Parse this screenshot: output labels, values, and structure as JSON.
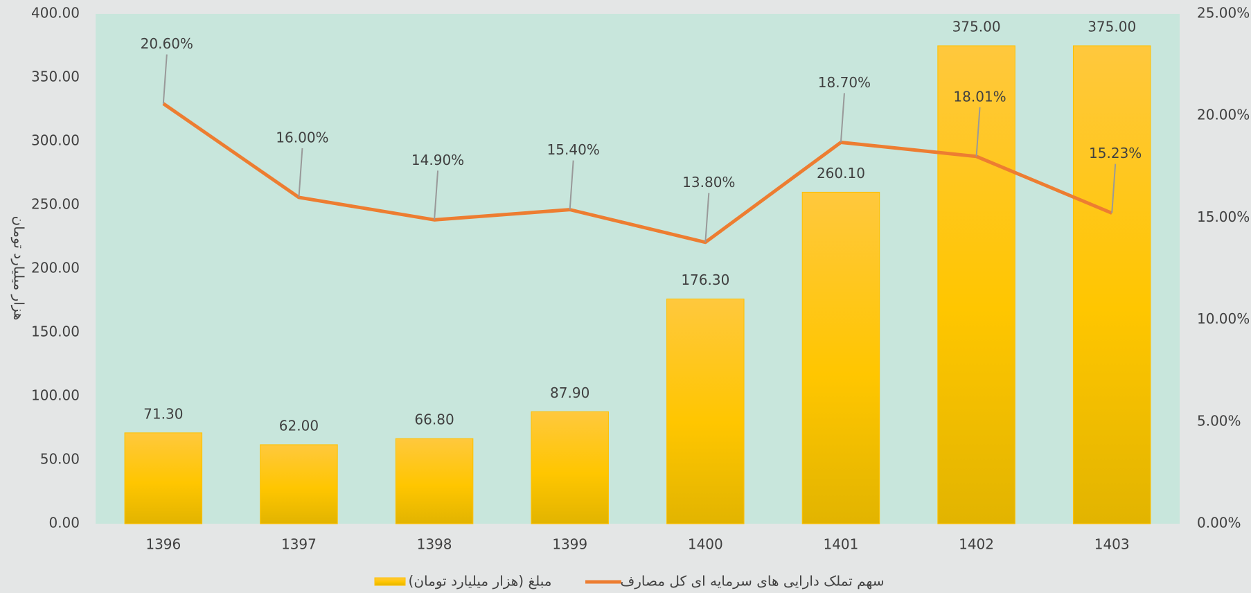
{
  "chart_data": {
    "type": "bar",
    "y_label": "هزار میلیارد تومان",
    "categories": [
      "1396",
      "1397",
      "1398",
      "1399",
      "1400",
      "1401",
      "1402",
      "1403"
    ],
    "series": [
      {
        "name": "مبلغ (هزار میلیارد تومان)",
        "type": "bar",
        "color": "#ffc000",
        "values": [
          71.3,
          62,
          66.8,
          87.9,
          176.3,
          260.1,
          375,
          375
        ],
        "value_labels": [
          "71.30",
          "62.00",
          "66.80",
          "87.90",
          "176.30",
          "260.10",
          "375.00",
          "375.00"
        ]
      },
      {
        "name": "سهم تملک دارایی های سرمایه ای کل مصارف",
        "type": "line",
        "axis": "y2",
        "color": "#ed7d31",
        "values": [
          20.6,
          16,
          14.9,
          15.4,
          13.8,
          18.7,
          18.01,
          15.23
        ],
        "value_labels": [
          "20.60%",
          "16.00%",
          "14.90%",
          "15.40%",
          "13.80%",
          "18.70%",
          "18.01%",
          "15.23%"
        ]
      }
    ],
    "ylim": [
      0,
      400
    ],
    "yticks": [
      {
        "value": 0,
        "label": "0.00"
      },
      {
        "value": 50,
        "label": "50.00"
      },
      {
        "value": 100,
        "label": "100.00"
      },
      {
        "value": 150,
        "label": "150.00"
      },
      {
        "value": 200,
        "label": "200.00"
      },
      {
        "value": 250,
        "label": "250.00"
      },
      {
        "value": 300,
        "label": "300.00"
      },
      {
        "value": 350,
        "label": "350.00"
      },
      {
        "value": 400,
        "label": "400.00"
      }
    ],
    "y2lim": [
      0,
      25
    ],
    "y2ticks": [
      {
        "value": 0,
        "label": "0.00%"
      },
      {
        "value": 5,
        "label": "5.00%"
      },
      {
        "value": 10,
        "label": "10.00%"
      },
      {
        "value": 15,
        "label": "15.00%"
      },
      {
        "value": 20,
        "label": "20.00%"
      },
      {
        "value": 25,
        "label": "25.00%"
      }
    ],
    "grid": false,
    "legend": "bottom"
  }
}
